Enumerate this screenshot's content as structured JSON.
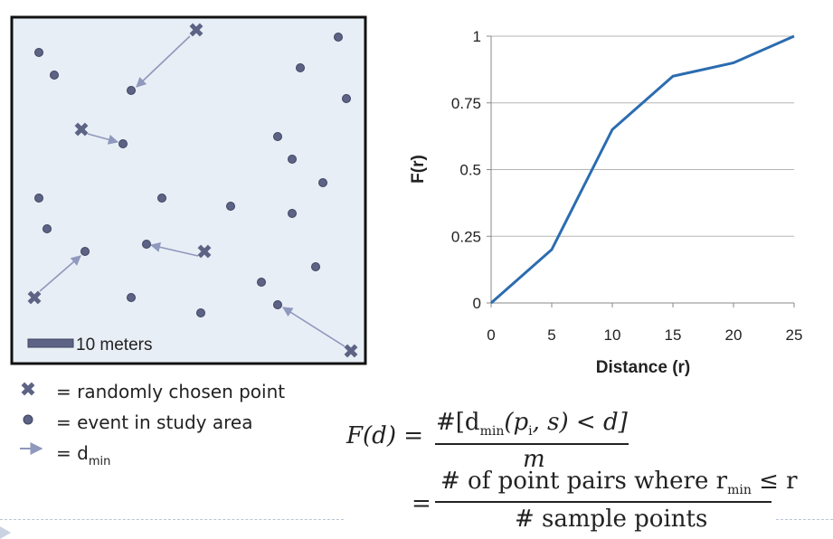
{
  "map": {
    "scale_label": "10 meters",
    "colors": {
      "background": "#e8eef5",
      "border": "#111111",
      "marker": "#5d6384",
      "arrow": "#8f98bd"
    }
  },
  "legend": {
    "random_point": "= randomly chosen point",
    "event": "= event in study area",
    "dmin_prefix": "= d",
    "dmin_sub": "min"
  },
  "formula": {
    "lhs": "F(d) =",
    "numerator_text": "#[d",
    "numerator_sub": "min",
    "numerator_rest": "(p",
    "numerator_i": "i",
    "numerator_end": ", s) < d]",
    "denominator": "m",
    "eq2": "=",
    "num2_text": "# of point pairs where r",
    "num2_sub": "min",
    "num2_end": "≤ r",
    "den2": "# sample points"
  },
  "chart_data": {
    "type": "line",
    "x": [
      0,
      5,
      10,
      15,
      20,
      25
    ],
    "series": [
      {
        "values": [
          0,
          0.2,
          0.65,
          0.85,
          0.9,
          1
        ]
      }
    ],
    "xlabel": "Distance (r)",
    "ylabel": "F(r)",
    "xticks": [
      "0",
      "5",
      "10",
      "15",
      "20",
      "25"
    ],
    "yticks": [
      "0",
      "0.25",
      "0.5",
      "0.75",
      "1"
    ],
    "ytick_values": [
      0,
      0.25,
      0.5,
      0.75,
      1
    ],
    "xlim": [
      0,
      25
    ],
    "ylim": [
      0,
      1
    ],
    "grid": "horizontal",
    "line_color": "#2b6cb0"
  }
}
